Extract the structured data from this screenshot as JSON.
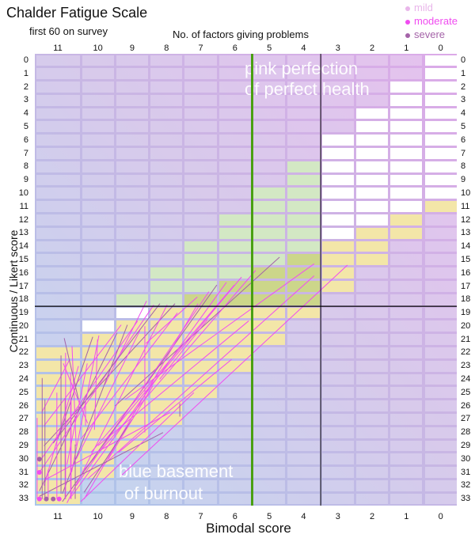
{
  "title": "Chalder Fatigue Scale",
  "subtitle": "first 60 on survey",
  "legend": [
    {
      "label": "mild",
      "color": "#e9b6ea"
    },
    {
      "label": "moderate",
      "color": "#f04cf0"
    },
    {
      "label": "severe",
      "color": "#a463a8"
    }
  ],
  "annotations": {
    "pink1": "pink perfection",
    "pink2": "of perfect health",
    "blue1": "blue basement",
    "blue2": "of burnout"
  },
  "colors": {
    "white": "#ffffff",
    "green": "#d3e8c4",
    "olive": "#ccd68a",
    "yellow": "#f3e6a8",
    "threshold_vertical": "#4aa012",
    "threshold_lines": "#000000"
  },
  "chart_data": {
    "type": "line",
    "title": "Chalder Fatigue Scale",
    "subtitle": "first 60 on survey",
    "xlabel": "Bimodal score",
    "x2label": "No. of factors giving problems",
    "ylabel": "Continuous / Likert score",
    "x_ticks": [
      11,
      10,
      9,
      8,
      7,
      6,
      5,
      4,
      3,
      2,
      1,
      0
    ],
    "y_ticks": [
      0,
      1,
      2,
      3,
      4,
      5,
      6,
      7,
      8,
      9,
      10,
      11,
      12,
      13,
      14,
      15,
      16,
      17,
      18,
      19,
      20,
      21,
      22,
      23,
      24,
      25,
      26,
      27,
      28,
      29,
      30,
      31,
      32,
      33
    ],
    "thresholds": {
      "bimodal": 5.5,
      "bimodal_secondary": 3.5,
      "likert": 18.5
    },
    "legend_position": "top-right",
    "segments_format": "[bimodal_start, likert_start, bimodal_end, likert_end, severity]",
    "segments": [
      [
        4.7,
        14.8,
        9.5,
        26.0,
        "severe"
      ],
      [
        3.69,
        15.3,
        9.2,
        25.5,
        "moderate"
      ],
      [
        3.69,
        16.2,
        10.3,
        31.5,
        "moderate"
      ],
      [
        2.72,
        15.4,
        9.3,
        31.2,
        "moderate"
      ],
      [
        5.4,
        15.8,
        10.4,
        30.8,
        "moderate"
      ],
      [
        5.81,
        16.3,
        9.8,
        28.6,
        "moderate"
      ],
      [
        6.25,
        16.7,
        10.7,
        32.8,
        "moderate"
      ],
      [
        6.02,
        16.9,
        10.2,
        29.5,
        "moderate"
      ],
      [
        6.53,
        16.9,
        10.9,
        33.2,
        "severe"
      ],
      [
        6.76,
        17.4,
        10.6,
        32.0,
        "moderate"
      ],
      [
        7.1,
        17.8,
        8.6,
        21.3,
        "moderate"
      ],
      [
        7.08,
        18.3,
        10.4,
        33.0,
        "moderate"
      ],
      [
        7.75,
        18.3,
        11.3,
        29.0,
        "severe"
      ],
      [
        7.68,
        19.0,
        10.5,
        28.5,
        "moderate"
      ],
      [
        8.37,
        18.4,
        11.4,
        31.0,
        "moderate"
      ],
      [
        8.58,
        18.1,
        9.8,
        24.4,
        "moderate"
      ],
      [
        7.98,
        18.4,
        10.8,
        33.3,
        "moderate"
      ],
      [
        8.19,
        18.3,
        11.1,
        28.8,
        "severe"
      ],
      [
        8.84,
        19.6,
        11.4,
        30.2,
        "moderate"
      ],
      [
        9.14,
        19.9,
        10.9,
        32.6,
        "severe"
      ],
      [
        9.32,
        19.9,
        11.3,
        27.5,
        "moderate"
      ],
      [
        8.77,
        20.3,
        10.6,
        30.0,
        "moderate"
      ],
      [
        9.44,
        20.5,
        11.4,
        32.4,
        "severe"
      ],
      [
        9.97,
        20.7,
        10.7,
        31.0,
        "moderate"
      ],
      [
        10.01,
        21.0,
        10.1,
        27.8,
        "moderate"
      ],
      [
        10.15,
        20.8,
        11.0,
        28.5,
        "severe"
      ],
      [
        10.31,
        22.8,
        10.8,
        30.4,
        "moderate"
      ],
      [
        10.55,
        23.0,
        11.3,
        32.0,
        "moderate"
      ],
      [
        10.88,
        22.8,
        10.3,
        27.3,
        "moderate"
      ],
      [
        10.74,
        22.5,
        11.35,
        26.5,
        "moderate"
      ],
      [
        10.69,
        21.5,
        10.6,
        29.0,
        "moderate"
      ],
      [
        10.86,
        20.9,
        10.55,
        25.5,
        "severe"
      ],
      [
        7.9,
        26.5,
        11.3,
        31.6,
        "moderate"
      ],
      [
        8.1,
        28.0,
        11.4,
        32.8,
        "severe"
      ],
      [
        7.2,
        25.0,
        10.5,
        33.2,
        "moderate"
      ],
      [
        6.1,
        22.5,
        9.4,
        29.5,
        "moderate"
      ],
      [
        5.6,
        19.6,
        10.0,
        29.0,
        "moderate"
      ],
      [
        9.0,
        27.0,
        10.4,
        32.5,
        "severe"
      ],
      [
        8.4,
        24.5,
        9.7,
        30.0,
        "moderate"
      ],
      [
        6.8,
        19.5,
        8.2,
        24.0,
        "moderate"
      ],
      [
        11.45,
        26.9,
        11.45,
        33,
        "moderate"
      ],
      [
        11.34,
        23.9,
        11.34,
        33,
        "severe"
      ],
      [
        11.28,
        25.5,
        11.28,
        33,
        "severe"
      ],
      [
        11.21,
        30.8,
        11.21,
        33,
        "moderate"
      ],
      [
        11.02,
        25.0,
        11.02,
        33,
        "moderate"
      ],
      [
        10.93,
        22.2,
        10.93,
        32.6,
        "severe"
      ],
      [
        10.84,
        25.4,
        10.84,
        33,
        "severe"
      ],
      [
        10.83,
        22.0,
        10.83,
        33,
        "moderate"
      ],
      [
        10.72,
        23.5,
        10.72,
        33,
        "moderate"
      ],
      [
        10.71,
        25.5,
        10.71,
        33,
        "moderate"
      ],
      [
        10.62,
        28.9,
        10.62,
        33,
        "severe"
      ],
      [
        10.36,
        25.5,
        10.36,
        27.5,
        "moderate"
      ],
      [
        8.63,
        20.0,
        8.63,
        28.0,
        "moderate"
      ],
      [
        7.61,
        25.8,
        7.61,
        26.8,
        "severe"
      ]
    ],
    "points": [
      [
        11.4,
        33,
        "moderate"
      ],
      [
        11.25,
        33,
        "severe"
      ],
      [
        11.1,
        33,
        "severe"
      ],
      [
        10.97,
        33,
        "moderate"
      ],
      [
        11.4,
        31,
        "moderate"
      ],
      [
        11.4,
        30,
        "severe"
      ]
    ]
  }
}
